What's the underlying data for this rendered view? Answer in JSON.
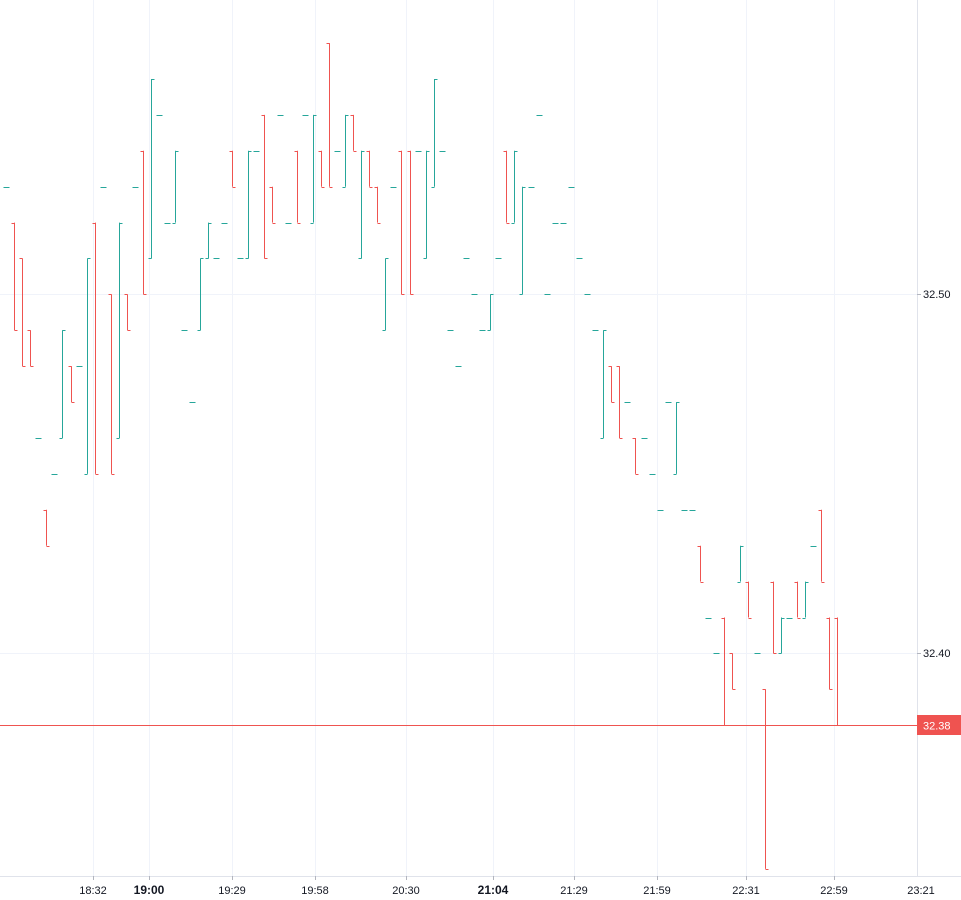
{
  "chart_data": {
    "type": "ohlc",
    "x_ticks": [
      {
        "label": "18:32",
        "bold": false
      },
      {
        "label": "19:00",
        "bold": true
      },
      {
        "label": "19:29",
        "bold": false
      },
      {
        "label": "19:58",
        "bold": false
      },
      {
        "label": "20:30",
        "bold": false
      },
      {
        "label": "21:04",
        "bold": true
      },
      {
        "label": "21:29",
        "bold": false
      },
      {
        "label": "21:59",
        "bold": false
      },
      {
        "label": "22:31",
        "bold": false
      },
      {
        "label": "22:59",
        "bold": false
      },
      {
        "label": "23:21",
        "bold": false
      }
    ],
    "y_ticks": [
      "32.50",
      "32.40"
    ],
    "ylim": [
      32.338,
      32.582
    ],
    "last_price": {
      "value": 32.38,
      "label": "32.38"
    },
    "colors": {
      "up": "#26a69a",
      "down": "#ef5350",
      "grid": "#f0f3fa",
      "axis": "#e0e3eb",
      "last_price_line": "#ef5350"
    },
    "candles": [
      [
        32.53,
        32.53,
        32.53,
        32.53
      ],
      [
        32.52,
        32.52,
        32.49,
        32.49
      ],
      [
        32.51,
        32.51,
        32.48,
        32.48
      ],
      [
        32.49,
        32.49,
        32.48,
        32.48
      ],
      [
        32.46,
        32.46,
        32.46,
        32.46
      ],
      [
        32.44,
        32.44,
        32.43,
        32.43
      ],
      [
        32.45,
        32.45,
        32.45,
        32.45
      ],
      [
        32.46,
        32.49,
        32.46,
        32.49
      ],
      [
        32.48,
        32.48,
        32.47,
        32.47
      ],
      [
        32.48,
        32.48,
        32.48,
        32.48
      ],
      [
        32.45,
        32.51,
        32.45,
        32.51
      ],
      [
        32.52,
        32.52,
        32.45,
        32.45
      ],
      [
        32.53,
        32.53,
        32.53,
        32.53
      ],
      [
        32.5,
        32.5,
        32.45,
        32.45
      ],
      [
        32.46,
        32.52,
        32.46,
        32.52
      ],
      [
        32.5,
        32.5,
        32.49,
        32.49
      ],
      [
        32.53,
        32.53,
        32.53,
        32.53
      ],
      [
        32.54,
        32.54,
        32.5,
        32.5
      ],
      [
        32.51,
        32.56,
        32.51,
        32.56
      ],
      [
        32.55,
        32.55,
        32.55,
        32.55
      ],
      [
        32.52,
        32.52,
        32.52,
        32.52
      ],
      [
        32.52,
        32.54,
        32.52,
        32.54
      ],
      [
        32.49,
        32.49,
        32.49,
        32.49
      ],
      [
        32.47,
        32.47,
        32.47,
        32.47
      ],
      [
        32.49,
        32.51,
        32.49,
        32.51
      ],
      [
        32.51,
        32.52,
        32.51,
        32.52
      ],
      [
        32.51,
        32.51,
        32.51,
        32.51
      ],
      [
        32.52,
        32.52,
        32.52,
        32.52
      ],
      [
        32.54,
        32.54,
        32.53,
        32.53
      ],
      [
        32.51,
        32.51,
        32.51,
        32.51
      ],
      [
        32.51,
        32.54,
        32.51,
        32.54
      ],
      [
        32.54,
        32.54,
        32.54,
        32.54
      ],
      [
        32.55,
        32.55,
        32.51,
        32.51
      ],
      [
        32.53,
        32.53,
        32.52,
        32.52
      ],
      [
        32.55,
        32.55,
        32.55,
        32.55
      ],
      [
        32.52,
        32.52,
        32.52,
        32.52
      ],
      [
        32.54,
        32.54,
        32.52,
        32.52
      ],
      [
        32.55,
        32.55,
        32.55,
        32.55
      ],
      [
        32.52,
        32.55,
        32.52,
        32.55
      ],
      [
        32.54,
        32.54,
        32.53,
        32.53
      ],
      [
        32.57,
        32.57,
        32.53,
        32.53
      ],
      [
        32.54,
        32.54,
        32.54,
        32.54
      ],
      [
        32.53,
        32.55,
        32.53,
        32.55
      ],
      [
        32.55,
        32.55,
        32.54,
        32.54
      ],
      [
        32.51,
        32.54,
        32.51,
        32.54
      ],
      [
        32.54,
        32.54,
        32.53,
        32.53
      ],
      [
        32.53,
        32.53,
        32.52,
        32.52
      ],
      [
        32.49,
        32.51,
        32.49,
        32.51
      ],
      [
        32.53,
        32.53,
        32.53,
        32.53
      ],
      [
        32.54,
        32.54,
        32.5,
        32.5
      ],
      [
        32.54,
        32.54,
        32.5,
        32.5
      ],
      [
        32.54,
        32.54,
        32.54,
        32.54
      ],
      [
        32.51,
        32.54,
        32.51,
        32.54
      ],
      [
        32.53,
        32.56,
        32.53,
        32.56
      ],
      [
        32.54,
        32.54,
        32.54,
        32.54
      ],
      [
        32.49,
        32.49,
        32.49,
        32.49
      ],
      [
        32.48,
        32.48,
        32.48,
        32.48
      ],
      [
        32.51,
        32.51,
        32.51,
        32.51
      ],
      [
        32.5,
        32.5,
        32.5,
        32.5
      ],
      [
        32.49,
        32.49,
        32.49,
        32.49
      ],
      [
        32.49,
        32.5,
        32.49,
        32.5
      ],
      [
        32.51,
        32.51,
        32.51,
        32.51
      ],
      [
        32.54,
        32.54,
        32.52,
        32.52
      ],
      [
        32.52,
        32.54,
        32.52,
        32.54
      ],
      [
        32.5,
        32.53,
        32.5,
        32.53
      ],
      [
        32.53,
        32.53,
        32.53,
        32.53
      ],
      [
        32.55,
        32.55,
        32.55,
        32.55
      ],
      [
        32.5,
        32.5,
        32.5,
        32.5
      ],
      [
        32.52,
        32.52,
        32.52,
        32.52
      ],
      [
        32.52,
        32.52,
        32.52,
        32.52
      ],
      [
        32.53,
        32.53,
        32.53,
        32.53
      ],
      [
        32.51,
        32.51,
        32.51,
        32.51
      ],
      [
        32.5,
        32.5,
        32.5,
        32.5
      ],
      [
        32.49,
        32.49,
        32.49,
        32.49
      ],
      [
        32.46,
        32.49,
        32.46,
        32.49
      ],
      [
        32.48,
        32.48,
        32.47,
        32.47
      ],
      [
        32.48,
        32.48,
        32.46,
        32.46
      ],
      [
        32.47,
        32.47,
        32.47,
        32.47
      ],
      [
        32.46,
        32.46,
        32.45,
        32.45
      ],
      [
        32.46,
        32.46,
        32.46,
        32.46
      ],
      [
        32.45,
        32.45,
        32.45,
        32.45
      ],
      [
        32.44,
        32.44,
        32.44,
        32.44
      ],
      [
        32.47,
        32.47,
        32.47,
        32.47
      ],
      [
        32.45,
        32.47,
        32.45,
        32.47
      ],
      [
        32.44,
        32.44,
        32.44,
        32.44
      ],
      [
        32.44,
        32.44,
        32.44,
        32.44
      ],
      [
        32.43,
        32.43,
        32.42,
        32.42
      ],
      [
        32.41,
        32.41,
        32.41,
        32.41
      ],
      [
        32.4,
        32.4,
        32.4,
        32.4
      ],
      [
        32.41,
        32.41,
        32.38,
        32.38
      ],
      [
        32.4,
        32.4,
        32.39,
        32.39
      ],
      [
        32.42,
        32.43,
        32.42,
        32.43
      ],
      [
        32.42,
        32.42,
        32.41,
        32.41
      ],
      [
        32.4,
        32.4,
        32.4,
        32.4
      ],
      [
        32.39,
        32.39,
        32.34,
        32.34
      ],
      [
        32.42,
        32.42,
        32.4,
        32.4
      ],
      [
        32.4,
        32.41,
        32.4,
        32.41
      ],
      [
        32.41,
        32.41,
        32.41,
        32.41
      ],
      [
        32.42,
        32.42,
        32.41,
        32.41
      ],
      [
        32.41,
        32.42,
        32.41,
        32.42
      ],
      [
        32.43,
        32.43,
        32.43,
        32.43
      ],
      [
        32.44,
        32.44,
        32.42,
        32.42
      ],
      [
        32.41,
        32.41,
        32.39,
        32.39
      ],
      [
        32.41,
        32.41,
        32.38,
        32.38
      ]
    ]
  }
}
